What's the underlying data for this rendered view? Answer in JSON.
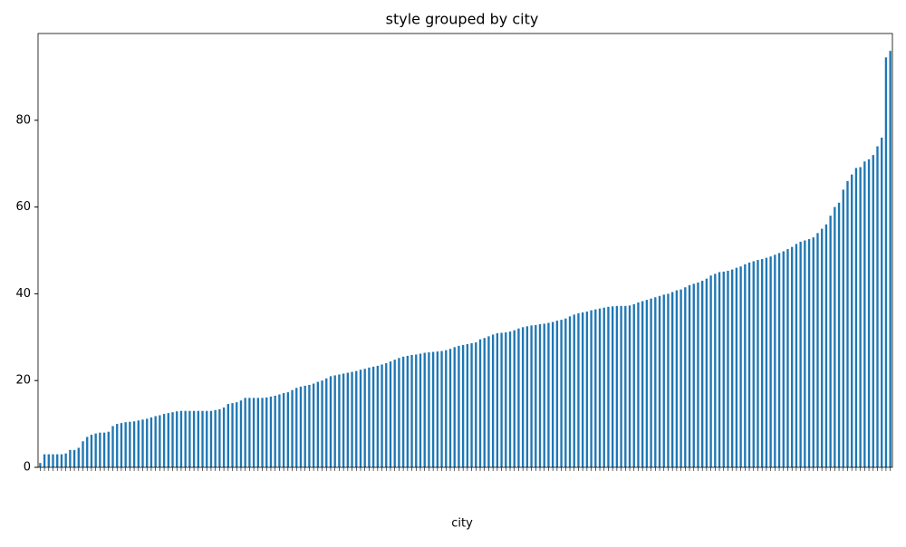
{
  "chart_data": {
    "type": "bar",
    "title": "style grouped by city",
    "xlabel": "city",
    "categories": [
      null,
      null,
      null,
      null,
      null,
      null,
      null,
      null,
      null,
      null,
      null,
      null,
      null,
      null,
      null,
      null,
      null,
      null,
      null,
      null,
      null,
      null,
      null,
      null,
      null,
      null,
      null,
      null,
      null,
      null,
      null,
      null,
      null,
      null,
      null,
      null,
      null,
      null,
      null,
      null,
      null,
      null,
      null,
      null,
      null,
      null,
      null,
      null,
      null,
      null,
      null,
      null,
      null,
      null,
      null,
      null,
      null,
      null,
      null,
      null,
      null,
      null,
      null,
      null,
      null,
      null,
      null,
      null,
      null,
      null,
      null,
      null,
      null,
      null,
      null,
      null,
      null,
      null,
      null,
      null,
      null,
      null,
      null,
      null,
      null,
      null,
      null,
      null,
      null,
      null,
      null,
      null,
      null,
      null,
      null,
      null,
      null,
      null,
      null,
      null,
      null,
      null,
      null,
      null,
      null,
      null,
      null,
      null,
      null,
      null,
      null,
      null,
      null,
      null,
      null,
      null,
      null,
      null,
      null,
      null,
      null,
      null,
      null,
      null,
      null,
      null,
      null,
      null,
      null,
      null,
      null,
      null,
      null,
      null,
      null,
      null,
      null,
      null,
      null,
      null,
      null,
      null,
      null,
      null,
      null,
      null,
      null,
      null,
      null,
      null,
      null,
      null,
      null,
      null,
      null,
      null,
      null,
      null,
      null,
      null,
      null,
      null,
      null,
      null,
      null,
      null,
      null,
      null,
      null,
      null,
      null,
      null,
      null,
      null,
      null,
      null,
      null,
      null,
      null,
      null,
      null,
      null,
      null,
      null,
      null,
      null,
      null,
      null,
      null,
      null,
      null,
      null,
      null,
      null,
      null,
      null,
      null,
      null,
      null,
      null
    ],
    "values": [
      1,
      3,
      3,
      3,
      3,
      3,
      3.2,
      4,
      4,
      4.5,
      6,
      7,
      7.5,
      7.8,
      8,
      8,
      8.2,
      9.5,
      10,
      10.2,
      10.4,
      10.5,
      10.6,
      10.8,
      11,
      11.2,
      11.5,
      11.8,
      12,
      12.3,
      12.5,
      12.7,
      12.9,
      13,
      13,
      13,
      13,
      13,
      13,
      13,
      13,
      13.2,
      13.4,
      13.8,
      14.6,
      14.8,
      15,
      15.4,
      16,
      16,
      16,
      16,
      16,
      16.1,
      16.3,
      16.5,
      16.8,
      17.1,
      17.3,
      17.8,
      18.3,
      18.6,
      18.8,
      19,
      19.3,
      19.7,
      20,
      20.5,
      21,
      21.2,
      21.4,
      21.6,
      21.8,
      22,
      22.2,
      22.5,
      22.7,
      23,
      23.2,
      23.4,
      23.7,
      24,
      24.4,
      24.8,
      25.2,
      25.5,
      25.7,
      25.9,
      26,
      26.2,
      26.4,
      26.5,
      26.6,
      26.7,
      26.8,
      27,
      27.3,
      27.7,
      28,
      28.2,
      28.4,
      28.6,
      28.8,
      29.5,
      29.8,
      30.2,
      30.6,
      30.9,
      31,
      31.1,
      31.3,
      31.6,
      32,
      32.3,
      32.5,
      32.7,
      32.8,
      33,
      33.1,
      33.3,
      33.5,
      33.8,
      34,
      34.3,
      34.8,
      35.2,
      35.5,
      35.7,
      35.9,
      36.2,
      36.4,
      36.6,
      36.8,
      37,
      37.1,
      37.2,
      37.2,
      37.2,
      37.3,
      37.6,
      38,
      38.3,
      38.6,
      38.9,
      39.2,
      39.5,
      39.8,
      40,
      40.4,
      40.8,
      41,
      41.5,
      42,
      42.3,
      42.6,
      43,
      43.5,
      44.2,
      44.6,
      45,
      45.1,
      45.3,
      45.6,
      46,
      46.3,
      46.8,
      47.2,
      47.5,
      47.8,
      48,
      48.3,
      48.6,
      49,
      49.4,
      49.8,
      50.3,
      50.8,
      51.5,
      52,
      52.3,
      52.6,
      53,
      54,
      55,
      56,
      58,
      60,
      61,
      64,
      66,
      67.5,
      69,
      69.2,
      70.5,
      71,
      72,
      74,
      76,
      94.5,
      96
    ],
    "color": "#1f77b4",
    "ylim": [
      0,
      100
    ],
    "yticks": [
      0,
      20,
      40,
      60,
      80
    ]
  }
}
